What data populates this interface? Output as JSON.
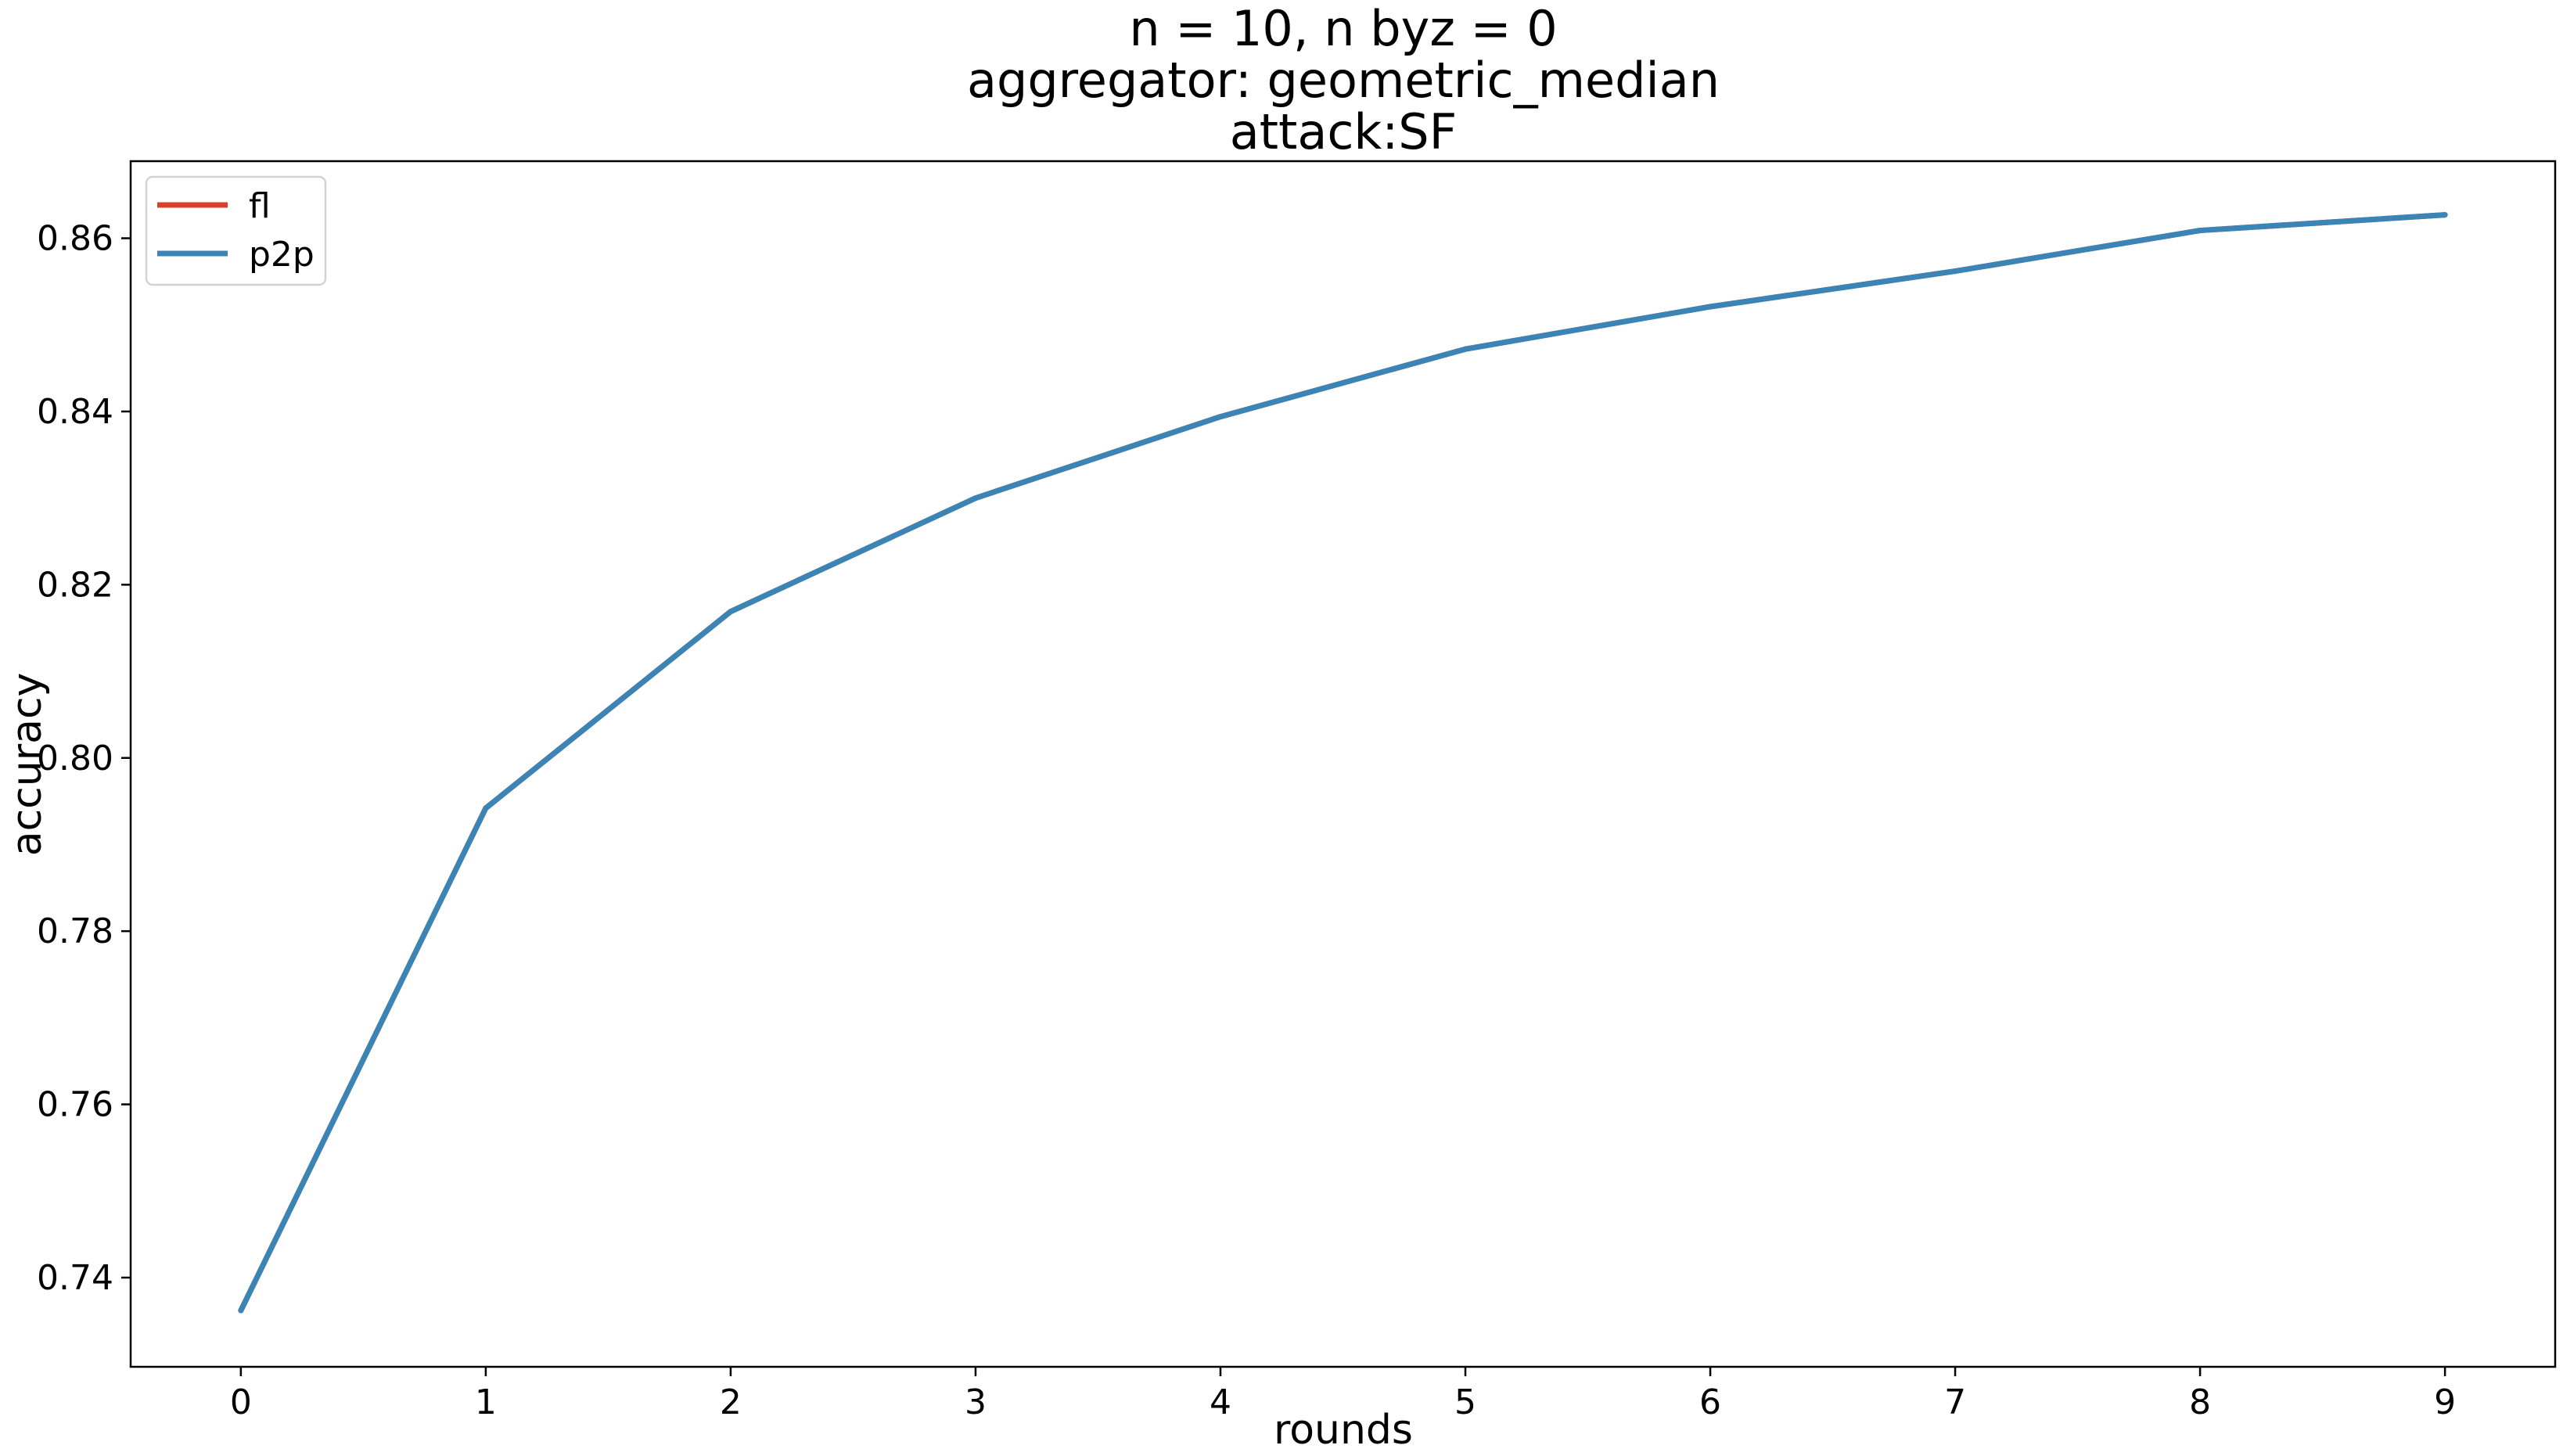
{
  "chart_data": {
    "type": "line",
    "title_lines": [
      "n = 10, n byz = 0",
      "aggregator: geometric_median",
      "attack:SF"
    ],
    "xlabel": "rounds",
    "ylabel": "accuracy",
    "x": [
      0,
      1,
      2,
      3,
      4,
      5,
      6,
      7,
      8,
      9
    ],
    "xticks": [
      0,
      1,
      2,
      3,
      4,
      5,
      6,
      7,
      8,
      9
    ],
    "yticks": [
      0.74,
      0.76,
      0.78,
      0.8,
      0.82,
      0.84,
      0.86
    ],
    "ytick_labels": [
      "0.74",
      "0.76",
      "0.78",
      "0.80",
      "0.82",
      "0.84",
      "0.86"
    ],
    "xlim": [
      -0.45,
      9.45
    ],
    "ylim": [
      0.7297,
      0.8689
    ],
    "grid": false,
    "legend_position": "top-left",
    "series": [
      {
        "name": "fl",
        "color": "#d7402b",
        "values": [
          0.7362,
          0.7942,
          0.8169,
          0.83,
          0.8394,
          0.8472,
          0.8521,
          0.8562,
          0.8609,
          0.8627
        ]
      },
      {
        "name": "p2p",
        "color": "#3a84b6",
        "values": [
          0.7362,
          0.7942,
          0.8169,
          0.83,
          0.8394,
          0.8472,
          0.8521,
          0.8562,
          0.8609,
          0.8627
        ]
      }
    ]
  }
}
